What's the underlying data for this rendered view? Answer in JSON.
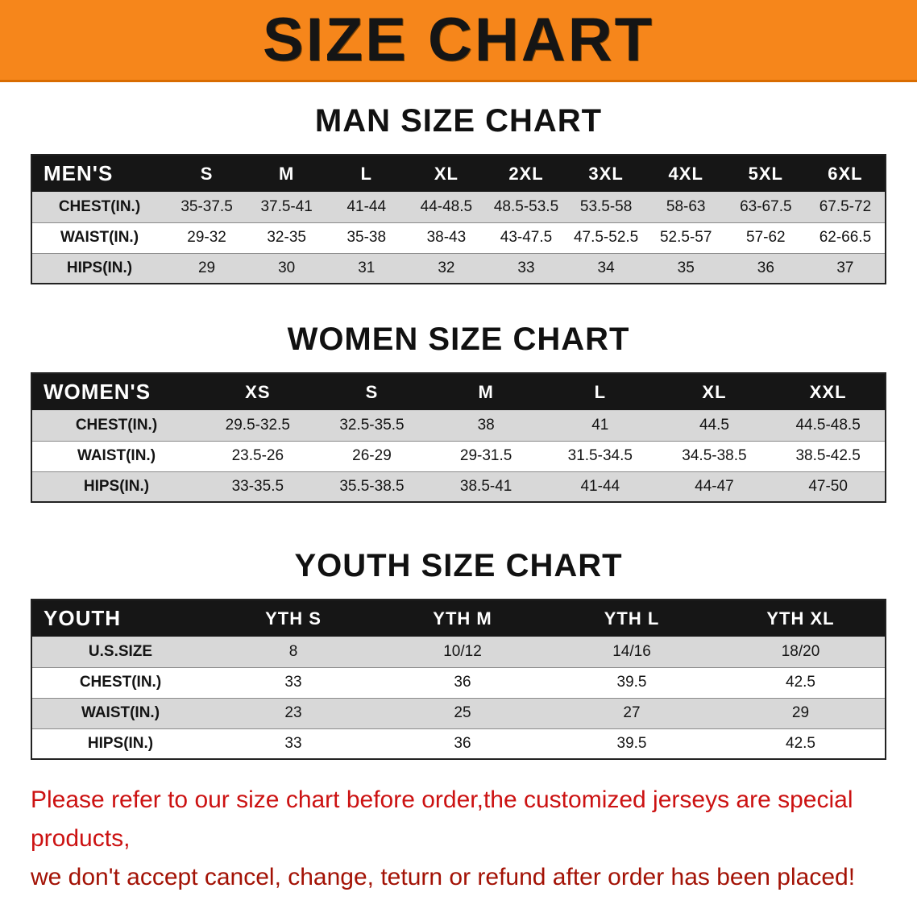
{
  "colors": {
    "banner-bg": "#f6861b",
    "header-bg": "#161616",
    "stripe": "#d8d8d8",
    "footer-red-1": "#cc1212",
    "footer-red-2": "#a31205"
  },
  "banner": {
    "title": "SIZE CHART"
  },
  "men": {
    "heading": "MAN SIZE CHART",
    "table": {
      "header": [
        "MEN'S",
        "S",
        "M",
        "L",
        "XL",
        "2XL",
        "3XL",
        "4XL",
        "5XL",
        "6XL"
      ],
      "rows": [
        {
          "label": "CHEST(IN.)",
          "values": [
            "35-37.5",
            "37.5-41",
            "41-44",
            "44-48.5",
            "48.5-53.5",
            "53.5-58",
            "58-63",
            "63-67.5",
            "67.5-72"
          ]
        },
        {
          "label": "WAIST(IN.)",
          "values": [
            "29-32",
            "32-35",
            "35-38",
            "38-43",
            "43-47.5",
            "47.5-52.5",
            "52.5-57",
            "57-62",
            "62-66.5"
          ]
        },
        {
          "label": "HIPS(IN.)",
          "values": [
            "29",
            "30",
            "31",
            "32",
            "33",
            "34",
            "35",
            "36",
            "37"
          ]
        }
      ]
    }
  },
  "women": {
    "heading": "WOMEN SIZE CHART",
    "table": {
      "header": [
        "WOMEN'S",
        "XS",
        "S",
        "M",
        "L",
        "XL",
        "XXL"
      ],
      "rows": [
        {
          "label": "CHEST(IN.)",
          "values": [
            "29.5-32.5",
            "32.5-35.5",
            "38",
            "41",
            "44.5",
            "44.5-48.5"
          ]
        },
        {
          "label": "WAIST(IN.)",
          "values": [
            "23.5-26",
            "26-29",
            "29-31.5",
            "31.5-34.5",
            "34.5-38.5",
            "38.5-42.5"
          ]
        },
        {
          "label": "HIPS(IN.)",
          "values": [
            "33-35.5",
            "35.5-38.5",
            "38.5-41",
            "41-44",
            "44-47",
            "47-50"
          ]
        }
      ]
    }
  },
  "youth": {
    "heading": "YOUTH SIZE CHART",
    "table": {
      "header": [
        "YOUTH",
        "YTH S",
        "YTH M",
        "YTH L",
        "YTH XL"
      ],
      "rows": [
        {
          "label": "U.S.SIZE",
          "values": [
            "8",
            "10/12",
            "14/16",
            "18/20"
          ]
        },
        {
          "label": "CHEST(IN.)",
          "values": [
            "33",
            "36",
            "39.5",
            "42.5"
          ]
        },
        {
          "label": "WAIST(IN.)",
          "values": [
            "23",
            "25",
            "27",
            "29"
          ]
        },
        {
          "label": "HIPS(IN.)",
          "values": [
            "33",
            "36",
            "39.5",
            "42.5"
          ]
        }
      ]
    }
  },
  "footer": {
    "line1": "Please refer to our size chart before order,the customized jerseys are special products,",
    "line2": "we don't accept cancel, change, teturn or refund after order has been placed!"
  },
  "chart_data": [
    {
      "type": "table",
      "title": "MAN SIZE CHART",
      "columns": [
        "MEN'S",
        "S",
        "M",
        "L",
        "XL",
        "2XL",
        "3XL",
        "4XL",
        "5XL",
        "6XL"
      ],
      "rows": [
        [
          "CHEST(IN.)",
          "35-37.5",
          "37.5-41",
          "41-44",
          "44-48.5",
          "48.5-53.5",
          "53.5-58",
          "58-63",
          "63-67.5",
          "67.5-72"
        ],
        [
          "WAIST(IN.)",
          "29-32",
          "32-35",
          "35-38",
          "38-43",
          "43-47.5",
          "47.5-52.5",
          "52.5-57",
          "57-62",
          "62-66.5"
        ],
        [
          "HIPS(IN.)",
          "29",
          "30",
          "31",
          "32",
          "33",
          "34",
          "35",
          "36",
          "37"
        ]
      ]
    },
    {
      "type": "table",
      "title": "WOMEN SIZE CHART",
      "columns": [
        "WOMEN'S",
        "XS",
        "S",
        "M",
        "L",
        "XL",
        "XXL"
      ],
      "rows": [
        [
          "CHEST(IN.)",
          "29.5-32.5",
          "32.5-35.5",
          "38",
          "41",
          "44.5",
          "44.5-48.5"
        ],
        [
          "WAIST(IN.)",
          "23.5-26",
          "26-29",
          "29-31.5",
          "31.5-34.5",
          "34.5-38.5",
          "38.5-42.5"
        ],
        [
          "HIPS(IN.)",
          "33-35.5",
          "35.5-38.5",
          "38.5-41",
          "41-44",
          "44-47",
          "47-50"
        ]
      ]
    },
    {
      "type": "table",
      "title": "YOUTH SIZE CHART",
      "columns": [
        "YOUTH",
        "YTH S",
        "YTH M",
        "YTH L",
        "YTH XL"
      ],
      "rows": [
        [
          "U.S.SIZE",
          "8",
          "10/12",
          "14/16",
          "18/20"
        ],
        [
          "CHEST(IN.)",
          "33",
          "36",
          "39.5",
          "42.5"
        ],
        [
          "WAIST(IN.)",
          "23",
          "25",
          "27",
          "29"
        ],
        [
          "HIPS(IN.)",
          "33",
          "36",
          "39.5",
          "42.5"
        ]
      ]
    }
  ]
}
